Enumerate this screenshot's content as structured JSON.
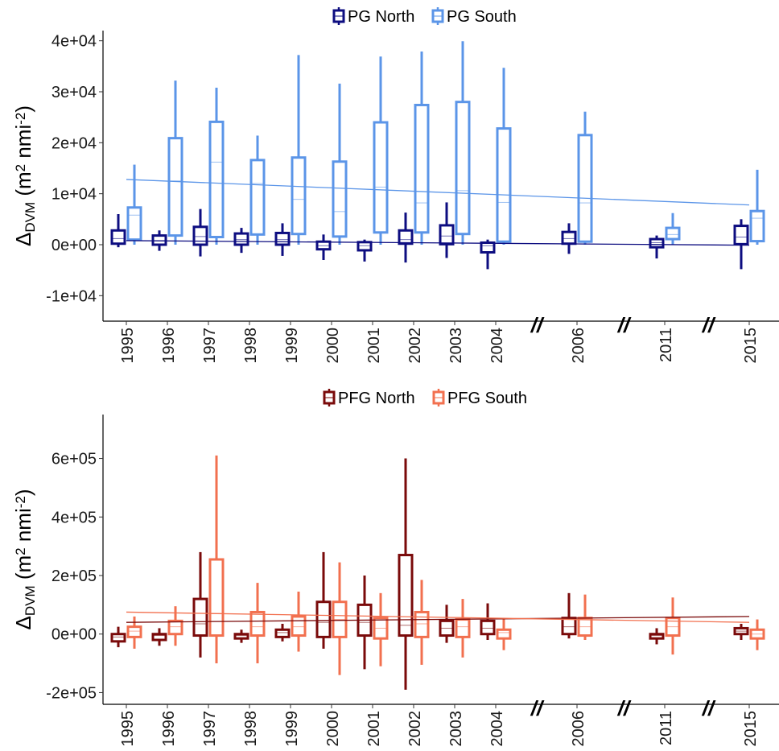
{
  "chart_data": [
    {
      "type": "box",
      "legend": [
        "PG North",
        "PG South"
      ],
      "colors": {
        "north": "#0d0d80",
        "south": "#5b95e8"
      },
      "ylabel": {
        "main": "Δ",
        "sub": "DVM",
        "unit_open": " (m",
        "sup1": "2",
        "unit_mid": " nmi",
        "sup2": "-2",
        "unit_close": ")"
      },
      "ylim": [
        -15000,
        42000
      ],
      "yticks": [
        -10000,
        0,
        10000,
        20000,
        30000,
        40000
      ],
      "ytick_labels": [
        "-1e+04",
        "0e+00",
        "1e+04",
        "2e+04",
        "3e+04",
        "4e+04"
      ],
      "years": [
        "1995",
        "1996",
        "1997",
        "1998",
        "1999",
        "2000",
        "2001",
        "2002",
        "2003",
        "2004",
        "2006",
        "2011",
        "2015"
      ],
      "breaks": [
        "//",
        "//",
        "//"
      ],
      "series": [
        {
          "name": "PG North",
          "boxes": [
            [
              -500,
              200,
              1200,
              2800,
              6000
            ],
            [
              -1200,
              0,
              800,
              1800,
              2800
            ],
            [
              -2300,
              0,
              1600,
              3500,
              7000
            ],
            [
              -1600,
              0,
              1000,
              2200,
              3300
            ],
            [
              -2200,
              0,
              1000,
              2300,
              4200
            ],
            [
              -3000,
              -900,
              -200,
              600,
              2000
            ],
            [
              -3300,
              -1100,
              -200,
              500,
              1000
            ],
            [
              -3500,
              200,
              1000,
              2800,
              6300
            ],
            [
              -2600,
              100,
              1700,
              3800,
              8300
            ],
            [
              -4800,
              -1500,
              -200,
              400,
              1000
            ],
            [
              -1800,
              200,
              1200,
              2500,
              4200
            ],
            [
              -2700,
              -500,
              400,
              1100,
              1800
            ],
            [
              -4800,
              100,
              1500,
              3700,
              5000
            ]
          ],
          "trend": [
            800,
            -100
          ]
        },
        {
          "name": "PG South",
          "boxes": [
            [
              0,
              1000,
              5800,
              7300,
              15700
            ],
            [
              0,
              1800,
              12500,
              20900,
              32200
            ],
            [
              0,
              1500,
              16200,
              24100,
              30800
            ],
            [
              0,
              2000,
              12000,
              16600,
              21400
            ],
            [
              0,
              2100,
              8900,
              17100,
              37200
            ],
            [
              0,
              1600,
              6500,
              16300,
              31600
            ],
            [
              0,
              2400,
              11300,
              24000,
              36900
            ],
            [
              0,
              2400,
              8200,
              27400,
              37900
            ],
            [
              0,
              2100,
              10600,
              28000,
              39900
            ],
            [
              0,
              600,
              8300,
              22800,
              34700
            ],
            [
              0,
              600,
              8200,
              21500,
              26100
            ],
            [
              0,
              1100,
              2000,
              3300,
              6200
            ],
            [
              0,
              700,
              5200,
              6600,
              14700
            ]
          ],
          "trend": [
            12800,
            7800
          ]
        }
      ]
    },
    {
      "type": "box",
      "legend": [
        "PFG North",
        "PFG South"
      ],
      "colors": {
        "north": "#7a0a0a",
        "south": "#f2704f"
      },
      "ylabel": {
        "main": "Δ",
        "sub": "DVM",
        "unit_open": " (m",
        "sup1": "2",
        "unit_mid": " nmi",
        "sup2": "-2",
        "unit_close": ")"
      },
      "ylim": [
        -240000,
        750000
      ],
      "yticks": [
        -200000,
        0,
        200000,
        400000,
        600000
      ],
      "ytick_labels": [
        "-2e+05",
        "0e+00",
        "2e+05",
        "4e+05",
        "6e+05"
      ],
      "years": [
        "1995",
        "1996",
        "1997",
        "1998",
        "1999",
        "2000",
        "2001",
        "2002",
        "2003",
        "2004",
        "2006",
        "2011",
        "2015"
      ],
      "breaks": [
        "//",
        "//",
        "//"
      ],
      "series": [
        {
          "name": "PFG North",
          "boxes": [
            [
              -45000,
              -25000,
              -10000,
              0,
              25000
            ],
            [
              -40000,
              -20000,
              -5000,
              0,
              20000
            ],
            [
              -80000,
              -5000,
              35000,
              120000,
              280000
            ],
            [
              -30000,
              -15000,
              -5000,
              0,
              15000
            ],
            [
              -25000,
              -10000,
              5000,
              15000,
              35000
            ],
            [
              -50000,
              -10000,
              40000,
              110000,
              280000
            ],
            [
              -120000,
              -5000,
              40000,
              100000,
              200000
            ],
            [
              -190000,
              -5000,
              30000,
              270000,
              600000
            ],
            [
              -30000,
              -5000,
              20000,
              45000,
              100000
            ],
            [
              -20000,
              0,
              20000,
              45000,
              105000
            ],
            [
              -15000,
              0,
              25000,
              55000,
              140000
            ],
            [
              -35000,
              -15000,
              -5000,
              0,
              20000
            ],
            [
              -20000,
              0,
              10000,
              20000,
              35000
            ]
          ],
          "trend": [
            40000,
            60000
          ]
        },
        {
          "name": "PFG South",
          "boxes": [
            [
              -50000,
              -10000,
              10000,
              25000,
              60000
            ],
            [
              -40000,
              0,
              25000,
              45000,
              95000
            ],
            [
              -100000,
              -5000,
              70000,
              255000,
              610000
            ],
            [
              -100000,
              -5000,
              25000,
              75000,
              175000
            ],
            [
              -60000,
              -5000,
              25000,
              60000,
              145000
            ],
            [
              -140000,
              -10000,
              50000,
              110000,
              245000
            ],
            [
              -110000,
              -15000,
              20000,
              55000,
              140000
            ],
            [
              -105000,
              -10000,
              35000,
              75000,
              185000
            ],
            [
              -80000,
              -10000,
              25000,
              50000,
              120000
            ],
            [
              -55000,
              -15000,
              5000,
              15000,
              55000
            ],
            [
              -20000,
              -5000,
              25000,
              55000,
              135000
            ],
            [
              -70000,
              -5000,
              25000,
              55000,
              125000
            ],
            [
              -55000,
              -15000,
              0,
              15000,
              50000
            ]
          ],
          "trend": [
            75000,
            40000
          ]
        }
      ]
    }
  ]
}
